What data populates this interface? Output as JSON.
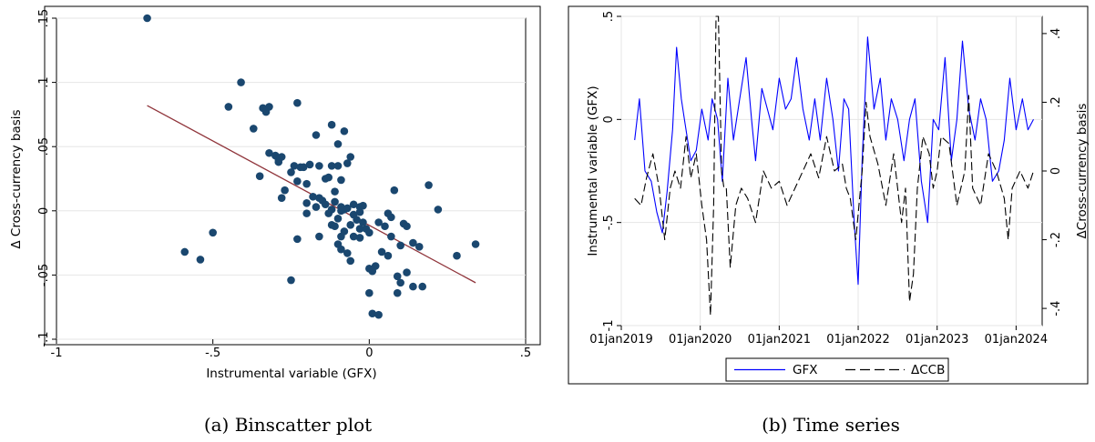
{
  "chart_data": [
    {
      "type": "scatter",
      "caption": "(a) Binscatter plot",
      "xlabel": "Instrumental variable (GFX)",
      "ylabel": "Δ Cross-currency basis",
      "xlim": [
        -1,
        0.5
      ],
      "ylim": [
        -0.1,
        0.15
      ],
      "x_ticks": [
        -1,
        -0.5,
        0,
        0.5
      ],
      "x_tick_labels": [
        "-1",
        "-.5",
        "0",
        ".5"
      ],
      "y_ticks": [
        -0.1,
        -0.05,
        0,
        0.05,
        0.1,
        0.15
      ],
      "y_tick_labels": [
        "-.1",
        "-.05",
        "0",
        ".05",
        ".1",
        ".15"
      ],
      "grid": true,
      "marker_color": "#1a476f",
      "fit_line_color": "#90353b",
      "fit_line": {
        "x": [
          -0.71,
          0.34
        ],
        "y": [
          0.082,
          -0.056
        ]
      },
      "points": [
        [
          -0.71,
          0.15
        ],
        [
          -0.41,
          0.1
        ],
        [
          -0.45,
          0.081
        ],
        [
          -0.37,
          0.064
        ],
        [
          -0.34,
          0.08
        ],
        [
          -0.32,
          0.081
        ],
        [
          -0.33,
          0.077
        ],
        [
          -0.23,
          0.084
        ],
        [
          -0.12,
          0.067
        ],
        [
          -0.08,
          0.062
        ],
        [
          -0.1,
          0.052
        ],
        [
          -0.17,
          0.059
        ],
        [
          -0.06,
          0.042
        ],
        [
          -0.07,
          0.037
        ],
        [
          -0.32,
          0.045
        ],
        [
          -0.3,
          0.043
        ],
        [
          -0.29,
          0.04
        ],
        [
          -0.28,
          0.042
        ],
        [
          -0.29,
          0.038
        ],
        [
          -0.35,
          0.027
        ],
        [
          -0.28,
          0.01
        ],
        [
          -0.25,
          0.03
        ],
        [
          -0.24,
          0.035
        ],
        [
          -0.22,
          0.034
        ],
        [
          -0.21,
          0.034
        ],
        [
          -0.19,
          0.036
        ],
        [
          -0.16,
          0.035
        ],
        [
          -0.14,
          0.025
        ],
        [
          -0.13,
          0.026
        ],
        [
          -0.12,
          0.035
        ],
        [
          -0.1,
          0.035
        ],
        [
          -0.23,
          0.023
        ],
        [
          -0.2,
          0.021
        ],
        [
          -0.18,
          0.011
        ],
        [
          -0.16,
          0.01
        ],
        [
          -0.15,
          0.008
        ],
        [
          -0.11,
          0.015
        ],
        [
          -0.09,
          0.024
        ],
        [
          -0.27,
          0.016
        ],
        [
          -0.2,
          0.006
        ],
        [
          -0.17,
          0.003
        ],
        [
          -0.14,
          0.005
        ],
        [
          -0.12,
          0.001
        ],
        [
          -0.11,
          0.007
        ],
        [
          -0.09,
          0.003
        ],
        [
          -0.08,
          0.001
        ],
        [
          -0.07,
          0.002
        ],
        [
          -0.09,
          0.0
        ],
        [
          -0.13,
          -0.002
        ],
        [
          -0.05,
          0.005
        ],
        [
          -0.03,
          0.003
        ],
        [
          -0.02,
          0.004
        ],
        [
          -0.05,
          -0.003
        ],
        [
          -0.03,
          -0.001
        ],
        [
          -0.04,
          -0.007
        ],
        [
          -0.02,
          -0.009
        ],
        [
          -0.1,
          -0.006
        ],
        [
          -0.12,
          -0.011
        ],
        [
          -0.06,
          -0.011
        ],
        [
          -0.03,
          -0.014
        ],
        [
          -0.01,
          -0.014
        ],
        [
          0.0,
          -0.017
        ],
        [
          -0.09,
          -0.02
        ],
        [
          -0.16,
          -0.02
        ],
        [
          -0.2,
          -0.002
        ],
        [
          -0.23,
          -0.022
        ],
        [
          -0.25,
          -0.054
        ],
        [
          -0.05,
          -0.02
        ],
        [
          -0.03,
          -0.021
        ],
        [
          -0.07,
          -0.033
        ],
        [
          -0.06,
          -0.039
        ],
        [
          -0.1,
          -0.026
        ],
        [
          -0.08,
          -0.016
        ],
        [
          -0.54,
          -0.038
        ],
        [
          -0.5,
          -0.017
        ],
        [
          -0.59,
          -0.032
        ],
        [
          0.06,
          -0.002
        ],
        [
          0.07,
          -0.005
        ],
        [
          0.03,
          -0.009
        ],
        [
          0.05,
          -0.012
        ],
        [
          0.08,
          0.016
        ],
        [
          0.11,
          -0.01
        ],
        [
          0.12,
          -0.012
        ],
        [
          0.07,
          -0.02
        ],
        [
          0.1,
          -0.027
        ],
        [
          0.14,
          -0.025
        ],
        [
          0.16,
          -0.028
        ],
        [
          0.19,
          0.02
        ],
        [
          0.22,
          0.001
        ],
        [
          0.04,
          -0.032
        ],
        [
          0.06,
          -0.035
        ],
        [
          0.02,
          -0.043
        ],
        [
          0.0,
          -0.045
        ],
        [
          0.01,
          -0.047
        ],
        [
          0.12,
          -0.048
        ],
        [
          0.09,
          -0.051
        ],
        [
          0.1,
          -0.056
        ],
        [
          0.14,
          -0.059
        ],
        [
          0.17,
          -0.059
        ],
        [
          0.09,
          -0.064
        ],
        [
          0.0,
          -0.064
        ],
        [
          0.01,
          -0.08
        ],
        [
          0.03,
          -0.081
        ],
        [
          0.28,
          -0.035
        ],
        [
          0.34,
          -0.026
        ],
        [
          -0.09,
          -0.03
        ],
        [
          -0.11,
          -0.012
        ]
      ]
    },
    {
      "type": "line",
      "caption": "(b) Time series",
      "ylabel_left": "Instrumental variable (GFX)",
      "ylabel_right": "ΔCross-currency basis",
      "x_tick_labels": [
        "01jan2019",
        "01jan2020",
        "01jan2021",
        "01jan2022",
        "01jan2023",
        "01jan2024"
      ],
      "x_ticks_year": [
        2019,
        2020,
        2021,
        2022,
        2023,
        2024
      ],
      "xlim_year": [
        2019.0,
        2024.33
      ],
      "ylim_left": [
        -1,
        0.5
      ],
      "y_ticks_left": [
        -1,
        -0.5,
        0,
        0.5
      ],
      "y_tick_labels_left": [
        "-1",
        "-.5",
        "0",
        ".5"
      ],
      "ylim_right": [
        -0.45,
        0.45
      ],
      "y_ticks_right": [
        -0.4,
        -0.2,
        0,
        0.2,
        0.4
      ],
      "y_tick_labels_right": [
        "-.4",
        "-.2",
        "0",
        ".2",
        ".4"
      ],
      "grid": true,
      "legend_position": "bottom",
      "series": [
        {
          "name": "GFX",
          "axis": "left",
          "color": "#0000ff",
          "style": "solid",
          "x": [
            2019.17,
            2019.23,
            2019.3,
            2019.38,
            2019.45,
            2019.52,
            2019.58,
            2019.65,
            2019.7,
            2019.76,
            2019.8,
            2019.88,
            2019.95,
            2020.02,
            2020.1,
            2020.15,
            2020.22,
            2020.28,
            2020.35,
            2020.42,
            2020.5,
            2020.58,
            2020.65,
            2020.7,
            2020.78,
            2020.85,
            2020.92,
            2021.0,
            2021.08,
            2021.15,
            2021.22,
            2021.3,
            2021.38,
            2021.45,
            2021.52,
            2021.6,
            2021.68,
            2021.75,
            2021.82,
            2021.88,
            2021.95,
            2022.0,
            2022.05,
            2022.12,
            2022.2,
            2022.28,
            2022.35,
            2022.42,
            2022.5,
            2022.58,
            2022.65,
            2022.72,
            2022.8,
            2022.88,
            2022.95,
            2023.02,
            2023.1,
            2023.18,
            2023.25,
            2023.32,
            2023.4,
            2023.48,
            2023.55,
            2023.62,
            2023.7,
            2023.78,
            2023.85,
            2023.92,
            2024.0,
            2024.08,
            2024.15,
            2024.22
          ],
          "y": [
            -0.1,
            0.1,
            -0.25,
            -0.3,
            -0.45,
            -0.55,
            -0.35,
            -0.05,
            0.35,
            0.1,
            0.0,
            -0.2,
            -0.15,
            0.05,
            -0.1,
            0.1,
            0.0,
            -0.3,
            0.2,
            -0.1,
            0.1,
            0.3,
            0.0,
            -0.2,
            0.15,
            0.05,
            -0.05,
            0.2,
            0.05,
            0.1,
            0.3,
            0.05,
            -0.1,
            0.1,
            -0.1,
            0.2,
            0.0,
            -0.25,
            0.1,
            0.05,
            -0.5,
            -0.8,
            -0.2,
            0.4,
            0.05,
            0.2,
            -0.1,
            0.1,
            0.0,
            -0.2,
            0.0,
            0.1,
            -0.3,
            -0.5,
            0.0,
            -0.05,
            0.3,
            -0.2,
            0.0,
            0.38,
            0.05,
            -0.1,
            0.1,
            0.0,
            -0.3,
            -0.25,
            -0.1,
            0.2,
            -0.05,
            0.1,
            -0.05,
            0.0
          ]
        },
        {
          "name": "ΔCCB",
          "axis": "right",
          "color": "#000000",
          "style": "dashed",
          "x": [
            2019.17,
            2019.25,
            2019.32,
            2019.4,
            2019.48,
            2019.55,
            2019.62,
            2019.68,
            2019.75,
            2019.82,
            2019.88,
            2019.95,
            2020.02,
            2020.08,
            2020.13,
            2020.17,
            2020.2,
            2020.23,
            2020.27,
            2020.3,
            2020.33,
            2020.38,
            2020.45,
            2020.52,
            2020.6,
            2020.7,
            2020.8,
            2020.9,
            2021.0,
            2021.1,
            2021.2,
            2021.3,
            2021.4,
            2021.5,
            2021.6,
            2021.7,
            2021.8,
            2021.85,
            2021.9,
            2021.97,
            2022.05,
            2022.1,
            2022.15,
            2022.25,
            2022.35,
            2022.45,
            2022.55,
            2022.6,
            2022.65,
            2022.7,
            2022.75,
            2022.82,
            2022.9,
            2022.95,
            2023.0,
            2023.05,
            2023.15,
            2023.25,
            2023.35,
            2023.4,
            2023.45,
            2023.55,
            2023.65,
            2023.75,
            2023.85,
            2023.9,
            2023.95,
            2024.05,
            2024.15,
            2024.22
          ],
          "y": [
            -0.08,
            -0.1,
            -0.02,
            0.05,
            -0.05,
            -0.2,
            -0.05,
            0.0,
            -0.05,
            0.1,
            -0.02,
            0.05,
            -0.1,
            -0.2,
            -0.42,
            -0.1,
            0.45,
            0.45,
            0.0,
            -0.05,
            -0.05,
            -0.28,
            -0.1,
            -0.05,
            -0.08,
            -0.15,
            0.0,
            -0.05,
            -0.03,
            -0.1,
            -0.05,
            0.0,
            0.05,
            -0.02,
            0.1,
            0.0,
            0.02,
            -0.05,
            -0.08,
            -0.2,
            0.0,
            0.2,
            0.1,
            0.02,
            -0.1,
            0.05,
            -0.15,
            -0.05,
            -0.38,
            -0.3,
            -0.05,
            0.1,
            0.05,
            -0.05,
            0.0,
            0.1,
            0.08,
            -0.1,
            0.0,
            0.22,
            -0.05,
            -0.1,
            0.05,
            0.0,
            -0.08,
            -0.2,
            -0.05,
            0.0,
            -0.05,
            0.0
          ]
        }
      ]
    }
  ]
}
